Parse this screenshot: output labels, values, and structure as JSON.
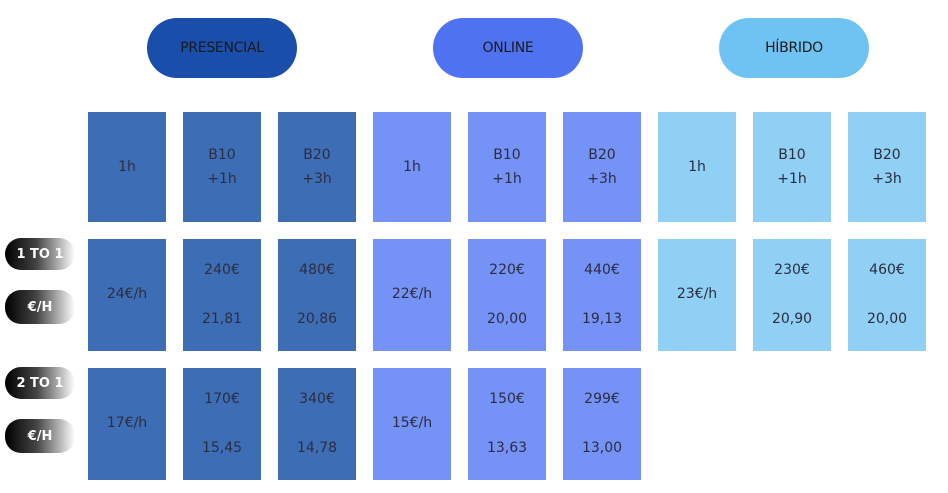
{
  "row_labels": [
    {
      "label": "1 TO 1",
      "unit": "€/H"
    },
    {
      "label": "2 TO 1",
      "unit": "€/H"
    }
  ],
  "modes": [
    {
      "name": "PRESENCIAL",
      "color": "#1a4eab",
      "cell_color": "#3d6db5",
      "columns": [
        {
          "line1": "1h"
        },
        {
          "line1": "B10",
          "line2": "+1h"
        },
        {
          "line1": "B20",
          "line2": "+3h"
        }
      ],
      "rows": [
        [
          {
            "price": "24€/h"
          },
          {
            "price": "240€",
            "per_hour": "21,81"
          },
          {
            "price": "480€",
            "per_hour": "20,86"
          }
        ],
        [
          {
            "price": "17€/h"
          },
          {
            "price": "170€",
            "per_hour": "15,45"
          },
          {
            "price": "340€",
            "per_hour": "14,78"
          }
        ]
      ]
    },
    {
      "name": "ONLINE",
      "color": "#4f73f0",
      "cell_color": "#7592f7",
      "columns": [
        {
          "line1": "1h"
        },
        {
          "line1": "B10",
          "line2": "+1h"
        },
        {
          "line1": "B20",
          "line2": "+3h"
        }
      ],
      "rows": [
        [
          {
            "price": "22€/h"
          },
          {
            "price": "220€",
            "per_hour": "20,00"
          },
          {
            "price": "440€",
            "per_hour": "19,13"
          }
        ],
        [
          {
            "price": "15€/h"
          },
          {
            "price": "150€",
            "per_hour": "13,63"
          },
          {
            "price": "299€",
            "per_hour": "13,00"
          }
        ]
      ]
    },
    {
      "name": "HÍBRIDO",
      "color": "#6ec3f2",
      "cell_color": "#8fd0f4",
      "columns": [
        {
          "line1": "1h"
        },
        {
          "line1": "B10",
          "line2": "+1h"
        },
        {
          "line1": "B20",
          "line2": "+3h"
        }
      ],
      "rows": [
        [
          {
            "price": "23€/h"
          },
          {
            "price": "230€",
            "per_hour": "20,90"
          },
          {
            "price": "460€",
            "per_hour": "20,00"
          }
        ]
      ]
    }
  ]
}
